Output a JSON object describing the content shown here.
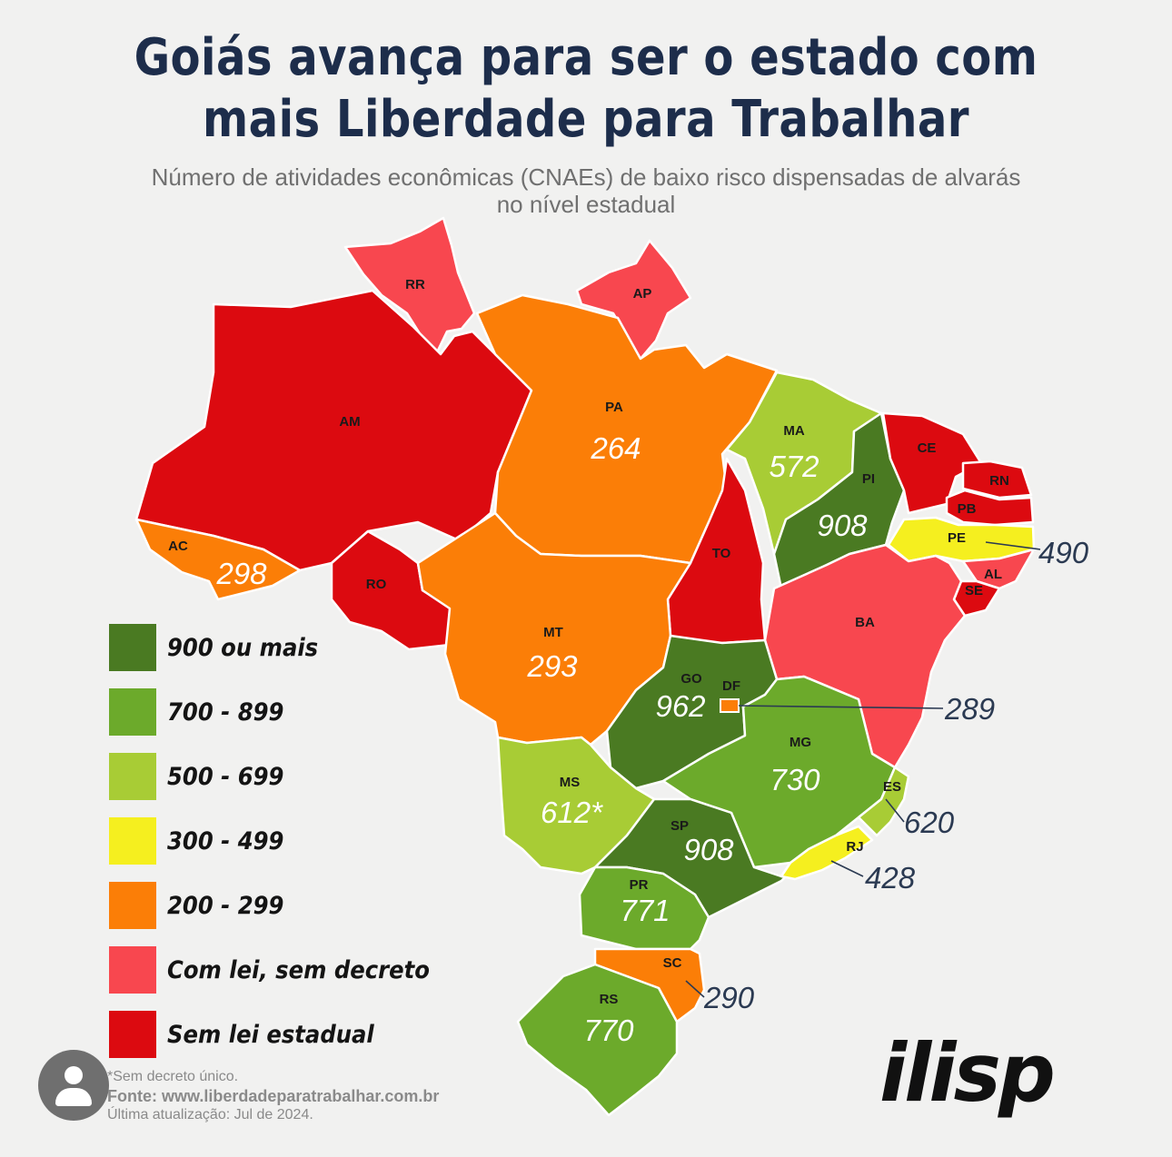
{
  "title_line1": "Goiás avança para ser o estado com",
  "title_line2": "mais Liberdade para Trabalhar",
  "subtitle_line1": "Número de atividades econômicas (CNAEs) de baixo risco dispensadas de alvarás",
  "subtitle_line2": "no nível estadual",
  "colors": {
    "c900": "#4a7a22",
    "c700": "#6caa2b",
    "c500": "#a8cc35",
    "c300": "#f5ef1f",
    "c200": "#fb7e07",
    "lei": "#f8474f",
    "sem": "#dc0a10"
  },
  "states": {
    "RR": {
      "abbr": "RR",
      "value": ""
    },
    "AP": {
      "abbr": "AP",
      "value": ""
    },
    "AM": {
      "abbr": "AM",
      "value": ""
    },
    "PA": {
      "abbr": "PA",
      "value": "264"
    },
    "MA": {
      "abbr": "MA",
      "value": "572"
    },
    "PI": {
      "abbr": "PI",
      "value": "908"
    },
    "CE": {
      "abbr": "CE",
      "value": ""
    },
    "RN": {
      "abbr": "RN",
      "value": ""
    },
    "PB": {
      "abbr": "PB",
      "value": ""
    },
    "PE": {
      "abbr": "PE",
      "value": "490"
    },
    "AL": {
      "abbr": "AL",
      "value": ""
    },
    "SE": {
      "abbr": "SE",
      "value": ""
    },
    "AC": {
      "abbr": "AC",
      "value": "298"
    },
    "RO": {
      "abbr": "RO",
      "value": ""
    },
    "TO": {
      "abbr": "TO",
      "value": ""
    },
    "BA": {
      "abbr": "BA",
      "value": ""
    },
    "MT": {
      "abbr": "MT",
      "value": "293"
    },
    "GO": {
      "abbr": "GO",
      "value": "962"
    },
    "DF": {
      "abbr": "DF",
      "value": "289"
    },
    "MG": {
      "abbr": "MG",
      "value": "730"
    },
    "ES": {
      "abbr": "ES",
      "value": "620"
    },
    "MS": {
      "abbr": "MS",
      "value": "612*"
    },
    "SP": {
      "abbr": "SP",
      "value": "908"
    },
    "RJ": {
      "abbr": "RJ",
      "value": "428"
    },
    "PR": {
      "abbr": "PR",
      "value": "771"
    },
    "SC": {
      "abbr": "SC",
      "value": "290"
    },
    "RS": {
      "abbr": "RS",
      "value": "770"
    }
  },
  "legend": [
    {
      "label": "900 ou mais",
      "color": "#4a7a22"
    },
    {
      "label": "700 - 899",
      "color": "#6caa2b"
    },
    {
      "label": "500 - 699",
      "color": "#a8cc35"
    },
    {
      "label": "300 - 499",
      "color": "#f5ef1f"
    },
    {
      "label": "200 - 299",
      "color": "#fb7e07"
    },
    {
      "label": "Com lei, sem decreto",
      "color": "#f8474f"
    },
    {
      "label": "Sem lei estadual",
      "color": "#dc0a10"
    }
  ],
  "footer": {
    "note": "*Sem decreto único.",
    "source": "Fonte: www.liberdadeparatrabalhar.com.br",
    "updated": "Última atualização: Jul de 2024."
  },
  "logo": "ilisp",
  "avatar_icon": "user-avatar-icon"
}
